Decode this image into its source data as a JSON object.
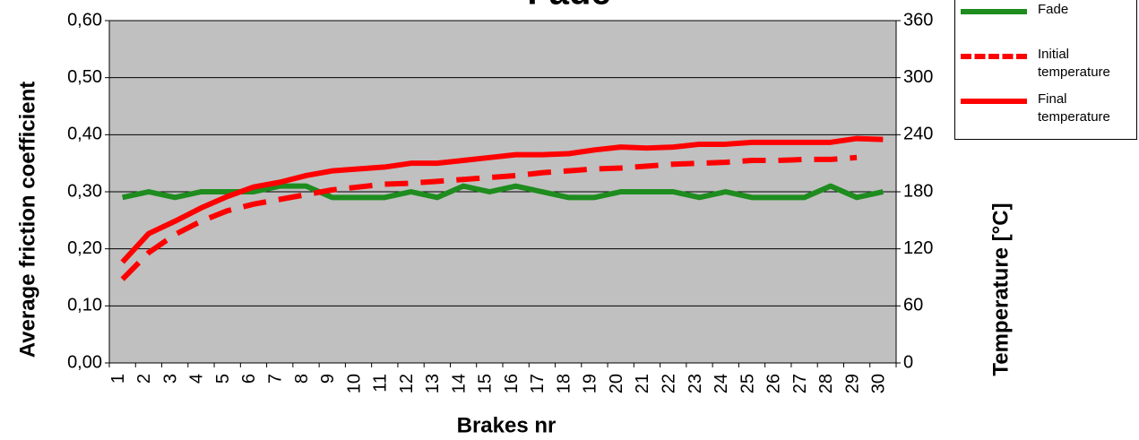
{
  "chart_data": {
    "type": "line",
    "title": "Fade",
    "xlabel": "Brakes nr",
    "ylabel": "Average friction coefficient",
    "y2label": "Temperature [°C]",
    "categories": [
      "1",
      "2",
      "3",
      "4",
      "5",
      "6",
      "7",
      "8",
      "9",
      "10",
      "11",
      "12",
      "13",
      "14",
      "15",
      "16",
      "17",
      "18",
      "19",
      "20",
      "21",
      "22",
      "23",
      "24",
      "25",
      "26",
      "27",
      "28",
      "29",
      "30"
    ],
    "series": [
      {
        "name": "Fade",
        "color": "#1e8c1e",
        "dashed": false,
        "values": [
          0.29,
          0.3,
          0.29,
          0.3,
          0.3,
          0.3,
          0.31,
          0.31,
          0.29,
          0.29,
          0.29,
          0.3,
          0.29,
          0.31,
          0.3,
          0.31,
          0.3,
          0.29,
          0.29,
          0.3,
          0.3,
          0.3,
          0.29,
          0.3,
          0.29,
          0.29,
          0.29,
          0.31,
          0.29,
          0.3
        ]
      },
      {
        "name": "Initial temperature",
        "color": "#ff0000",
        "dashed": true,
        "axis": "y2",
        "values": [
          88,
          116,
          135,
          149,
          160,
          167,
          172,
          177,
          182,
          185,
          188,
          189,
          191,
          193,
          195,
          197,
          200,
          202,
          204,
          205,
          207,
          209,
          210,
          211,
          213,
          213,
          214,
          214,
          216,
          null
        ]
      },
      {
        "name": "Final temperature",
        "color": "#ff0000",
        "dashed": false,
        "axis": "y2",
        "values": [
          106,
          136,
          149,
          163,
          175,
          185,
          190,
          197,
          202,
          204,
          206,
          210,
          210,
          213,
          216,
          219,
          219,
          220,
          224,
          227,
          226,
          227,
          230,
          230,
          232,
          232,
          232,
          232,
          236,
          235
        ]
      }
    ],
    "ylim": [
      0,
      0.6
    ],
    "yticks": [
      {
        "value": 0,
        "label": "0,00"
      },
      {
        "value": 0.1,
        "label": "0,10"
      },
      {
        "value": 0.2,
        "label": "0,20"
      },
      {
        "value": 0.3,
        "label": "0,30"
      },
      {
        "value": 0.4,
        "label": "0,40"
      },
      {
        "value": 0.5,
        "label": "0,50"
      },
      {
        "value": 0.6,
        "label": "0,60"
      }
    ],
    "y2lim": [
      0,
      360
    ],
    "y2ticks": [
      0,
      60,
      120,
      180,
      240,
      300,
      360
    ],
    "grid": true,
    "background": "#c0c0c0"
  }
}
